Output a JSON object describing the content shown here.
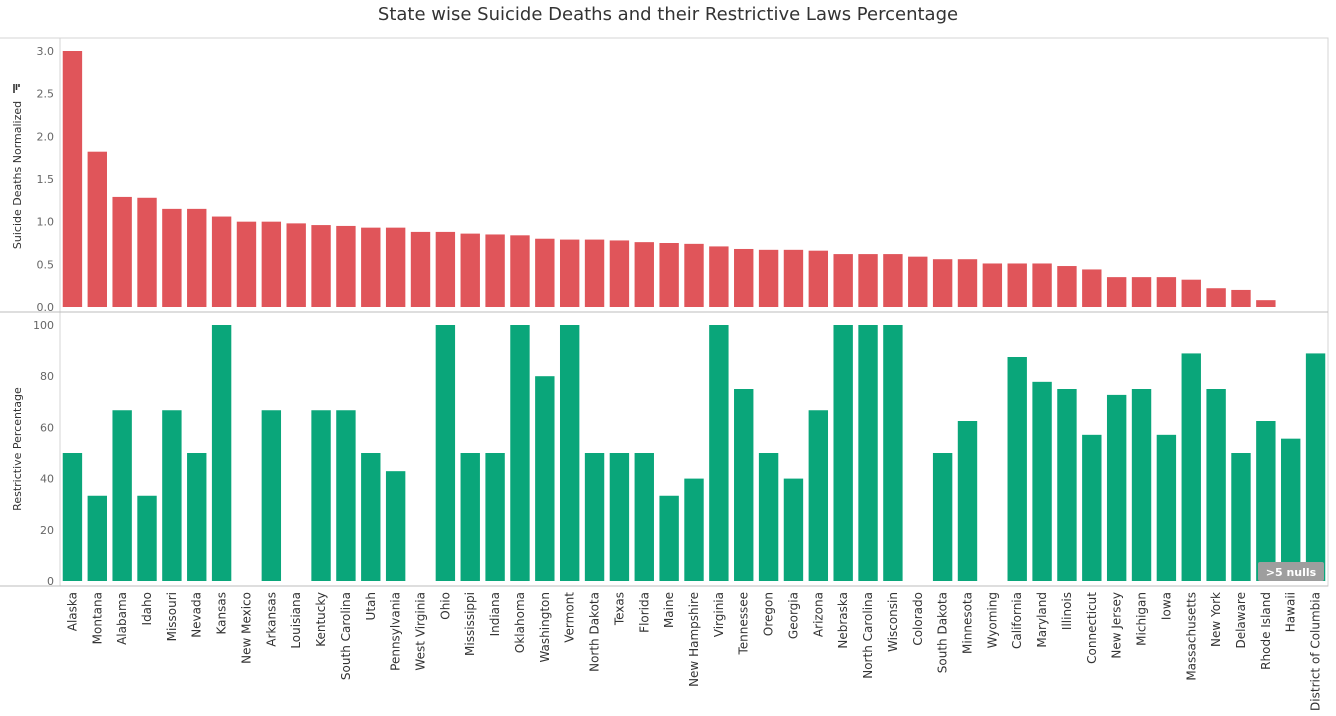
{
  "chart_data": {
    "type": "bar",
    "title": "State wise Suicide Deaths and their Restrictive Laws Percentage",
    "categories": [
      "Alaska",
      "Montana",
      "Alabama",
      "Idaho",
      "Missouri",
      "Nevada",
      "Kansas",
      "New Mexico",
      "Arkansas",
      "Louisiana",
      "Kentucky",
      "South Carolina",
      "Utah",
      "Pennsylvania",
      "West Virginia",
      "Ohio",
      "Mississippi",
      "Indiana",
      "Oklahoma",
      "Washington",
      "Vermont",
      "North Dakota",
      "Texas",
      "Florida",
      "Maine",
      "New Hampshire",
      "Virginia",
      "Tennessee",
      "Oregon",
      "Georgia",
      "Arizona",
      "Nebraska",
      "North Carolina",
      "Wisconsin",
      "Colorado",
      "South Dakota",
      "Minnesota",
      "Wyoming",
      "California",
      "Maryland",
      "Illinois",
      "Connecticut",
      "New Jersey",
      "Michigan",
      "Iowa",
      "Massachusetts",
      "New York",
      "Delaware",
      "Rhode Island",
      "Hawaii",
      "District of Columbia"
    ],
    "panels": [
      {
        "ylabel": "Suicide Deaths Normalized",
        "ylim": [
          0,
          3.0
        ],
        "yticks": [
          "3.0",
          "2.5",
          "2.0",
          "1.5",
          "1.0",
          "0.5",
          "0.0"
        ],
        "color": "#e0555a",
        "values": [
          3.0,
          1.82,
          1.29,
          1.28,
          1.15,
          1.15,
          1.06,
          1.0,
          1.0,
          0.98,
          0.96,
          0.95,
          0.93,
          0.93,
          0.88,
          0.88,
          0.86,
          0.85,
          0.84,
          0.8,
          0.79,
          0.79,
          0.78,
          0.76,
          0.75,
          0.74,
          0.71,
          0.68,
          0.67,
          0.67,
          0.66,
          0.62,
          0.62,
          0.62,
          0.59,
          0.56,
          0.56,
          0.51,
          0.51,
          0.51,
          0.48,
          0.44,
          0.35,
          0.35,
          0.35,
          0.32,
          0.22,
          0.2,
          0.08,
          null,
          null
        ]
      },
      {
        "ylabel": "Restrictive Percentage",
        "ylim": [
          0,
          100
        ],
        "yticks": [
          "100",
          "80",
          "60",
          "40",
          "20",
          "0"
        ],
        "color": "#0aa67a",
        "values": [
          50,
          33.3,
          66.7,
          33.3,
          66.7,
          50,
          100,
          null,
          66.7,
          null,
          66.7,
          66.7,
          50,
          42.9,
          null,
          100,
          50,
          50,
          100,
          80,
          100,
          50,
          50,
          50,
          33.3,
          40,
          100,
          75,
          50,
          40,
          66.7,
          100,
          100,
          100,
          null,
          50,
          62.5,
          null,
          87.5,
          77.8,
          75,
          57.1,
          72.7,
          75,
          57.1,
          88.9,
          75,
          50,
          62.5,
          55.6,
          88.9
        ]
      }
    ],
    "nulls_indicator": ">5 nulls",
    "grid": false,
    "legend": "none"
  }
}
